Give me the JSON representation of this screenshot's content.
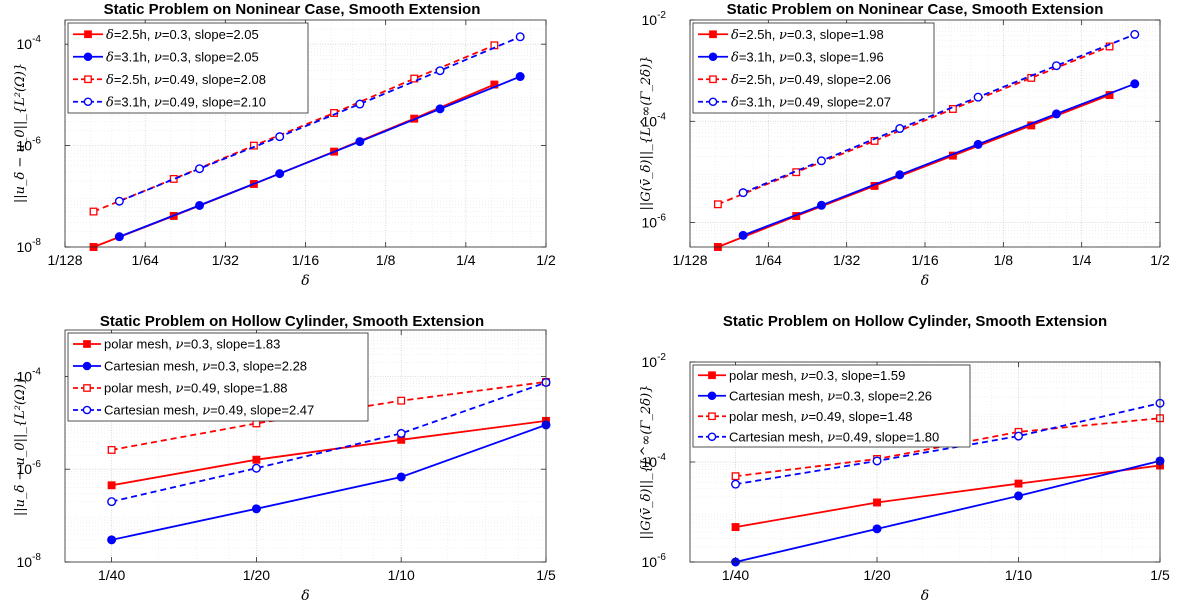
{
  "chart_data": [
    {
      "type": "line",
      "title": "Static Problem on Noninear Case, Smooth Extension",
      "xlabel": "δ",
      "ylabel": "||u_δ − u_0||_{L²(Ω)}",
      "x_scale": "log2",
      "y_scale": "log10",
      "xlim": [
        0.0078125,
        0.5
      ],
      "ylim": [
        1e-08,
        0.0003
      ],
      "xticks": [
        0.0078125,
        0.015625,
        0.03125,
        0.0625,
        0.125,
        0.25,
        0.5
      ],
      "xtick_labels": [
        "1/128",
        "1/64",
        "1/32",
        "1/16",
        "1/8",
        "1/4",
        "1/2"
      ],
      "yticks": [
        1e-08,
        1e-06,
        0.0001
      ],
      "ytick_labels": [
        {
          "base": "10",
          "exp": "-8"
        },
        {
          "base": "10",
          "exp": "-6"
        },
        {
          "base": "10",
          "exp": "-4"
        }
      ],
      "grid": true,
      "legend_position": "top-left",
      "series": [
        {
          "legend_parts": [
            "δ",
            "=2.5h,    ",
            "ν",
            "=0.3, slope=2.05"
          ],
          "color": "#ff0000",
          "dash": false,
          "marker": "square-filled",
          "x": [
            0.01,
            0.02,
            0.04,
            0.08,
            0.16,
            0.32
          ],
          "y": [
            1e-08,
            4.1e-08,
            1.75e-07,
            7.6e-07,
            3.4e-06,
            1.6e-05
          ]
        },
        {
          "legend_parts": [
            "δ",
            "=3.1h,    ",
            "ν",
            "=0.3, slope=2.05"
          ],
          "color": "#0000ff",
          "dash": false,
          "marker": "circle-filled",
          "x": [
            0.0125,
            0.025,
            0.05,
            0.1,
            0.2,
            0.4
          ],
          "y": [
            1.6e-08,
            6.6e-08,
            2.8e-07,
            1.2e-06,
            5.3e-06,
            2.3e-05
          ]
        },
        {
          "legend_parts": [
            "δ",
            "=2.5h,    ",
            "ν",
            "=0.49, slope=2.08"
          ],
          "color": "#ff0000",
          "dash": true,
          "marker": "square-open",
          "x": [
            0.01,
            0.02,
            0.04,
            0.08,
            0.16,
            0.32
          ],
          "y": [
            5e-08,
            2.2e-07,
            1e-06,
            4.4e-06,
            2.1e-05,
            9.5e-05
          ]
        },
        {
          "legend_parts": [
            "δ",
            "=3.1h,    ",
            "ν",
            "=0.49, slope=2.10"
          ],
          "color": "#0000ff",
          "dash": true,
          "marker": "circle-open",
          "x": [
            0.0125,
            0.025,
            0.05,
            0.1,
            0.2,
            0.4
          ],
          "y": [
            8e-08,
            3.5e-07,
            1.5e-06,
            6.6e-06,
            3e-05,
            0.00014
          ]
        }
      ]
    },
    {
      "type": "line",
      "title": "Static Problem on Noninear Case, Smooth Extension",
      "xlabel": "δ",
      "ylabel": "||G(v̄_δ)||_{L^∞(Γ_2δ)}",
      "x_scale": "log2",
      "y_scale": "log10",
      "xlim": [
        0.0078125,
        0.5
      ],
      "ylim": [
        3.3e-07,
        0.01
      ],
      "xticks": [
        0.0078125,
        0.015625,
        0.03125,
        0.0625,
        0.125,
        0.25,
        0.5
      ],
      "xtick_labels": [
        "1/128",
        "1/64",
        "1/32",
        "1/16",
        "1/8",
        "1/4",
        "1/2"
      ],
      "yticks": [
        1e-06,
        0.0001,
        0.01
      ],
      "ytick_labels": [
        {
          "base": "10",
          "exp": "-6"
        },
        {
          "base": "10",
          "exp": "-4"
        },
        {
          "base": "10",
          "exp": "-2"
        }
      ],
      "grid": true,
      "legend_position": "top-left",
      "series": [
        {
          "legend_parts": [
            "δ",
            "=2.5h,    ",
            "ν",
            "=0.3, slope=1.98"
          ],
          "color": "#ff0000",
          "dash": false,
          "marker": "square-filled",
          "x": [
            0.01,
            0.02,
            0.04,
            0.08,
            0.16,
            0.32
          ],
          "y": [
            3.3e-07,
            1.35e-06,
            5.3e-06,
            2.1e-05,
            8.3e-05,
            0.00033
          ]
        },
        {
          "legend_parts": [
            "δ",
            "=3.1h,    ",
            "ν",
            "=0.3, slope=1.96"
          ],
          "color": "#0000ff",
          "dash": false,
          "marker": "circle-filled",
          "x": [
            0.0125,
            0.025,
            0.05,
            0.1,
            0.2,
            0.4
          ],
          "y": [
            5.6e-07,
            2.2e-06,
            8.8e-06,
            3.5e-05,
            0.00014,
            0.00055
          ]
        },
        {
          "legend_parts": [
            "δ",
            "=2.5h,    ",
            "ν",
            "=0.49, slope=2.06"
          ],
          "color": "#ff0000",
          "dash": true,
          "marker": "square-open",
          "x": [
            0.01,
            0.02,
            0.04,
            0.08,
            0.16,
            0.32
          ],
          "y": [
            2.3e-06,
            9.9e-06,
            4.1e-05,
            0.000175,
            0.00072,
            0.003
          ]
        },
        {
          "legend_parts": [
            "δ",
            "=3.1h,    ",
            "ν",
            "=0.49, slope=2.07"
          ],
          "color": "#0000ff",
          "dash": true,
          "marker": "circle-open",
          "x": [
            0.0125,
            0.025,
            0.05,
            0.1,
            0.2,
            0.4
          ],
          "y": [
            3.9e-06,
            1.66e-05,
            7.2e-05,
            0.0003,
            0.00125,
            0.0052
          ]
        }
      ]
    },
    {
      "type": "line",
      "title": "Static Problem on Hollow Cylinder, Smooth Extension",
      "xlabel": "δ",
      "ylabel": "||u_δ − u_0||_{L²(Ω)}",
      "x_scale": "log2",
      "y_scale": "log10",
      "xlim": [
        0.02,
        0.2
      ],
      "ylim": [
        1e-08,
        0.001
      ],
      "xticks": [
        0.025,
        0.05,
        0.1,
        0.2
      ],
      "xtick_labels": [
        "1/40",
        "1/20",
        "1/10",
        "1/5"
      ],
      "yticks": [
        1e-08,
        1e-06,
        0.0001
      ],
      "ytick_labels": [
        {
          "base": "10",
          "exp": "-8"
        },
        {
          "base": "10",
          "exp": "-6"
        },
        {
          "base": "10",
          "exp": "-4"
        }
      ],
      "grid": true,
      "legend_position": "top-left",
      "series": [
        {
          "legend_parts": [
            "polar mesh,    ",
            "ν",
            "=0.3, slope=1.83"
          ],
          "color": "#ff0000",
          "dash": false,
          "marker": "square-filled",
          "x": [
            0.025,
            0.05,
            0.1,
            0.2
          ],
          "y": [
            4.5e-07,
            1.6e-06,
            4.3e-06,
            1.1e-05
          ]
        },
        {
          "legend_parts": [
            "Cartesian mesh,    ",
            "ν",
            "=0.3, slope=2.28"
          ],
          "color": "#0000ff",
          "dash": false,
          "marker": "circle-filled",
          "x": [
            0.025,
            0.05,
            0.1,
            0.2
          ],
          "y": [
            3e-08,
            1.4e-07,
            6.8e-07,
            9e-06
          ]
        },
        {
          "legend_parts": [
            "polar mesh,    ",
            "ν",
            "=0.49, slope=1.88"
          ],
          "color": "#ff0000",
          "dash": true,
          "marker": "square-open",
          "x": [
            0.025,
            0.05,
            0.1,
            0.2
          ],
          "y": [
            2.6e-06,
            9.7e-06,
            3e-05,
            7.6e-05
          ]
        },
        {
          "legend_parts": [
            "Cartesian mesh,    ",
            "ν",
            "=0.49, slope=2.47"
          ],
          "color": "#0000ff",
          "dash": true,
          "marker": "circle-open",
          "x": [
            0.025,
            0.05,
            0.1,
            0.2
          ],
          "y": [
            2e-07,
            1.05e-06,
            5.9e-06,
            7.4e-05
          ]
        }
      ]
    },
    {
      "type": "line",
      "title": "Static Problem on Hollow Cylinder, Smooth Extension",
      "xlabel": "δ",
      "ylabel": "||G(v̄_δ)||_{L^∞(Γ_2δ)}",
      "x_scale": "log2",
      "y_scale": "log10",
      "xlim": [
        0.02,
        0.2
      ],
      "ylim": [
        1e-06,
        0.01
      ],
      "xticks": [
        0.025,
        0.05,
        0.1,
        0.2
      ],
      "xtick_labels": [
        "1/40",
        "1/20",
        "1/10",
        "1/5"
      ],
      "yticks": [
        1e-06,
        0.0001,
        0.01
      ],
      "ytick_labels": [
        {
          "base": "10",
          "exp": "-6"
        },
        {
          "base": "10",
          "exp": "-4"
        },
        {
          "base": "10",
          "exp": "-2"
        }
      ],
      "grid": true,
      "legend_position": "top-left",
      "series": [
        {
          "legend_parts": [
            "polar mesh,    ",
            "ν",
            "=0.3, slope=1.59"
          ],
          "color": "#ff0000",
          "dash": false,
          "marker": "square-filled",
          "x": [
            0.025,
            0.05,
            0.1,
            0.2
          ],
          "y": [
            5e-06,
            1.55e-05,
            3.7e-05,
            8.5e-05
          ]
        },
        {
          "legend_parts": [
            "Cartesian mesh,    ",
            "ν",
            "=0.3, slope=2.26"
          ],
          "color": "#0000ff",
          "dash": false,
          "marker": "circle-filled",
          "x": [
            0.025,
            0.05,
            0.1,
            0.2
          ],
          "y": [
            1e-06,
            4.6e-06,
            2.1e-05,
            0.000105
          ]
        },
        {
          "legend_parts": [
            "polar mesh,    ",
            "ν",
            "=0.49, slope=1.48"
          ],
          "color": "#ff0000",
          "dash": true,
          "marker": "square-open",
          "x": [
            0.025,
            0.05,
            0.1,
            0.2
          ],
          "y": [
            5.2e-05,
            0.000115,
            0.0004,
            0.00075
          ]
        },
        {
          "legend_parts": [
            "Cartesian mesh,    ",
            "ν",
            "=0.49, slope=1.80"
          ],
          "color": "#0000ff",
          "dash": true,
          "marker": "circle-open",
          "x": [
            0.025,
            0.05,
            0.1,
            0.2
          ],
          "y": [
            3.6e-05,
            0.000105,
            0.00033,
            0.0015
          ]
        }
      ]
    }
  ]
}
